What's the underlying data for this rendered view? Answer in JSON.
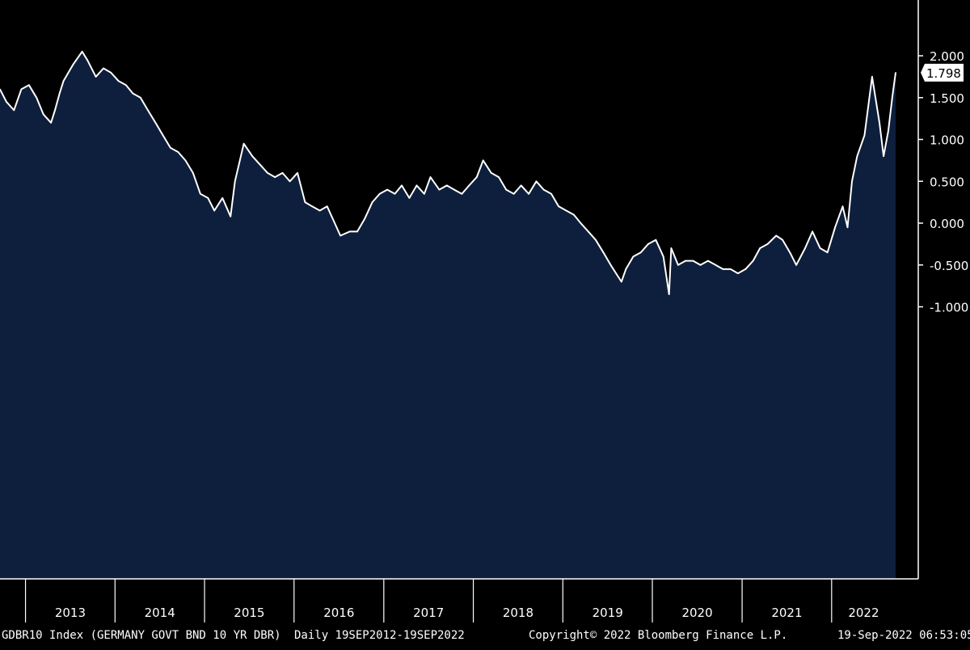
{
  "chart_data": {
    "type": "area",
    "ylim": [
      -1.15,
      2.3
    ],
    "x_start": "2012-09-19",
    "x_end": "2022-09-19",
    "y_ticks": [
      "2.000",
      "1.500",
      "1.000",
      "0.500",
      "0.000",
      "-0.500",
      "-1.000"
    ],
    "y_tick_values": [
      2.0,
      1.5,
      1.0,
      0.5,
      0.0,
      -0.5,
      -1.0
    ],
    "x_tick_labels": [
      "2013",
      "2014",
      "2015",
      "2016",
      "2017",
      "2018",
      "2019",
      "2020",
      "2021",
      "2022"
    ],
    "last_value_label": "1.798",
    "last_value": 1.798,
    "grid": false,
    "colors": {
      "line": "#ffffff",
      "fill": "#0d1f3c",
      "background": "#000000",
      "label_box": "#ffffff"
    },
    "x": [
      "2012-09-19",
      "2012-10-15",
      "2012-11-15",
      "2012-12-15",
      "2013-01-15",
      "2013-02-15",
      "2013-03-15",
      "2013-04-15",
      "2013-05-01",
      "2013-05-20",
      "2013-06-05",
      "2013-06-25",
      "2013-07-15",
      "2013-08-20",
      "2013-09-10",
      "2013-10-15",
      "2013-11-15",
      "2013-12-15",
      "2014-01-15",
      "2014-02-15",
      "2014-03-15",
      "2014-04-15",
      "2014-05-15",
      "2014-06-15",
      "2014-07-15",
      "2014-08-15",
      "2014-09-15",
      "2014-10-15",
      "2014-11-15",
      "2014-12-15",
      "2015-01-15",
      "2015-02-10",
      "2015-03-15",
      "2015-04-17",
      "2015-05-05",
      "2015-06-10",
      "2015-07-15",
      "2015-08-15",
      "2015-09-15",
      "2015-10-15",
      "2015-11-15",
      "2015-12-15",
      "2016-01-15",
      "2016-02-15",
      "2016-03-15",
      "2016-04-15",
      "2016-05-15",
      "2016-06-15",
      "2016-07-08",
      "2016-08-15",
      "2016-09-15",
      "2016-10-15",
      "2016-11-15",
      "2016-12-15",
      "2017-01-15",
      "2017-02-15",
      "2017-03-15",
      "2017-04-15",
      "2017-05-15",
      "2017-06-15",
      "2017-07-10",
      "2017-08-15",
      "2017-09-15",
      "2017-10-15",
      "2017-11-15",
      "2017-12-15",
      "2018-01-15",
      "2018-02-10",
      "2018-03-15",
      "2018-04-15",
      "2018-05-15",
      "2018-06-15",
      "2018-07-15",
      "2018-08-15",
      "2018-09-15",
      "2018-10-15",
      "2018-11-15",
      "2018-12-15",
      "2019-01-15",
      "2019-02-15",
      "2019-03-15",
      "2019-04-15",
      "2019-05-15",
      "2019-06-15",
      "2019-07-15",
      "2019-08-28",
      "2019-09-15",
      "2019-10-15",
      "2019-11-15",
      "2019-12-15",
      "2020-01-15",
      "2020-02-15",
      "2020-03-09",
      "2020-03-18",
      "2020-04-15",
      "2020-05-15",
      "2020-06-15",
      "2020-07-15",
      "2020-08-15",
      "2020-09-15",
      "2020-10-15",
      "2020-11-15",
      "2020-12-15",
      "2021-01-15",
      "2021-02-15",
      "2021-03-15",
      "2021-04-15",
      "2021-05-20",
      "2021-06-15",
      "2021-07-15",
      "2021-08-10",
      "2021-09-15",
      "2021-10-15",
      "2021-11-15",
      "2021-12-15",
      "2022-01-15",
      "2022-02-15",
      "2022-03-07",
      "2022-03-25",
      "2022-04-15",
      "2022-05-15",
      "2022-06-15",
      "2022-07-15",
      "2022-08-01",
      "2022-08-20",
      "2022-09-05",
      "2022-09-19"
    ],
    "series": [
      {
        "values": [
          1.6,
          1.45,
          1.35,
          1.6,
          1.65,
          1.5,
          1.3,
          1.2,
          1.35,
          1.55,
          1.7,
          1.8,
          1.9,
          2.05,
          1.95,
          1.75,
          1.85,
          1.8,
          1.7,
          1.65,
          1.55,
          1.5,
          1.35,
          1.2,
          1.05,
          0.9,
          0.85,
          0.75,
          0.6,
          0.35,
          0.3,
          0.15,
          0.3,
          0.08,
          0.5,
          0.95,
          0.8,
          0.7,
          0.6,
          0.55,
          0.6,
          0.5,
          0.6,
          0.25,
          0.2,
          0.15,
          0.2,
          0.0,
          -0.15,
          -0.1,
          -0.1,
          0.05,
          0.25,
          0.35,
          0.4,
          0.35,
          0.45,
          0.3,
          0.45,
          0.35,
          0.55,
          0.4,
          0.45,
          0.4,
          0.35,
          0.45,
          0.55,
          0.75,
          0.6,
          0.55,
          0.4,
          0.35,
          0.45,
          0.35,
          0.5,
          0.4,
          0.35,
          0.2,
          0.15,
          0.1,
          0.0,
          -0.1,
          -0.2,
          -0.35,
          -0.5,
          -0.7,
          -0.55,
          -0.4,
          -0.35,
          -0.25,
          -0.2,
          -0.4,
          -0.85,
          -0.3,
          -0.5,
          -0.45,
          -0.45,
          -0.5,
          -0.45,
          -0.5,
          -0.55,
          -0.55,
          -0.6,
          -0.55,
          -0.45,
          -0.3,
          -0.25,
          -0.15,
          -0.2,
          -0.35,
          -0.5,
          -0.3,
          -0.1,
          -0.3,
          -0.35,
          -0.05,
          0.2,
          -0.05,
          0.5,
          0.8,
          1.05,
          1.75,
          1.2,
          0.8,
          1.1,
          1.5,
          1.798
        ]
      }
    ]
  },
  "footer": {
    "series_label": "GDBR10 Index (GERMANY GOVT BND 10 YR DBR)",
    "range_label": "Daily 19SEP2012-19SEP2022",
    "copyright": "Copyright© 2022 Bloomberg Finance L.P.",
    "timestamp": "19-Sep-2022 06:53:05"
  }
}
